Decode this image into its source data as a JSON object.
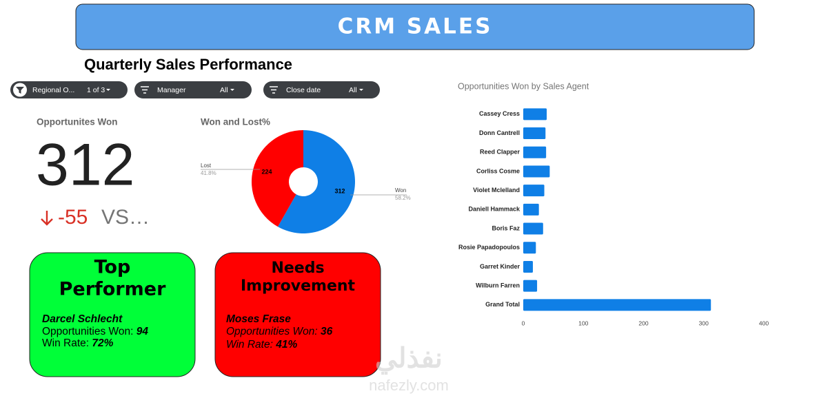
{
  "header": {
    "title": "CRM SALES"
  },
  "section_title": "Quarterly Sales Performance",
  "filters": [
    {
      "label": "Regional O...",
      "value": "1 of 3"
    },
    {
      "label": "Manager",
      "value": "All"
    },
    {
      "label": "Close date",
      "value": "All"
    }
  ],
  "kpi": {
    "title": "Opportunites Won",
    "value": 312,
    "delta": -55,
    "comparison": "VS…"
  },
  "cards": [
    {
      "title_line1": "Top",
      "title_line2": "Performer",
      "name": "Darcel Schlecht",
      "won_label": "Opportunities Won:",
      "won": 94,
      "rate_label": "Win Rate:",
      "rate": "72%"
    },
    {
      "title_line1": "Needs",
      "title_line2": "Improvement",
      "name": "Moses Frase",
      "won_label": "Opportunities Won:",
      "won": 36,
      "rate_label": "Win Rate:",
      "rate": "41%"
    }
  ],
  "watermark": {
    "arabic": "نفذلي",
    "latin": "nafezly.com"
  },
  "chart_data": [
    {
      "type": "pie",
      "title": "Won and Lost%",
      "categories": [
        "Won",
        "Lost"
      ],
      "values": [
        312,
        224
      ],
      "percent_labels": [
        "58.2%",
        "41.8%"
      ],
      "colors": [
        "#0f7fe6",
        "#ff0000"
      ]
    },
    {
      "type": "hbar",
      "title": "Opportunities Won by Sales Agent",
      "categories": [
        "Cassey Cress",
        "Donn Cantrell",
        "Reed Clapper",
        "Corliss Cosme",
        "Violet Mclelland",
        "Daniell Hammack",
        "Boris Faz",
        "Rosie Papadopoulos",
        "Garret Kinder",
        "Wilburn Farren",
        "Grand Total"
      ],
      "values": [
        39,
        37,
        38,
        44,
        35,
        26,
        33,
        21,
        16,
        23,
        312
      ],
      "color": "#0f7fe6",
      "xlim": [
        0,
        400
      ],
      "xticks": [
        0,
        100,
        200,
        300,
        400
      ],
      "grid": false
    }
  ]
}
